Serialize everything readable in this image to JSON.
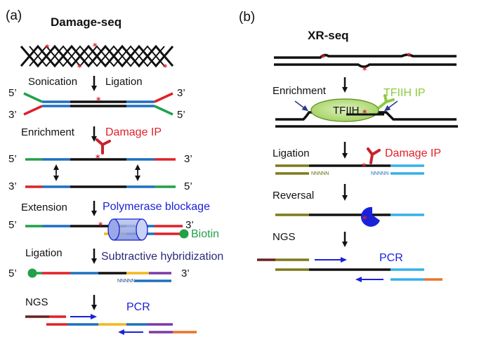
{
  "panel_a": {
    "label": "(a)",
    "title": "Damage-seq",
    "steps": {
      "sonication": "Sonication",
      "ligation1": "Ligation",
      "enrichment": "Enrichment",
      "damage_ip": "Damage IP",
      "extension": "Extension",
      "polymerase_blockage": "Polymerase blockage",
      "biotin": "Biotin",
      "ligation2": "Ligation",
      "subtractive": "Subtractive hybridization",
      "ngs": "NGS",
      "pcr": "PCR"
    },
    "ends": {
      "five": "5’",
      "three": "3’"
    },
    "nnnnn": "NNNNN"
  },
  "panel_b": {
    "label": "(b)",
    "title": "XR-seq",
    "steps": {
      "enrichment": "Enrichment",
      "tfiih_ip": "TFIIH IP",
      "tfiih": "TFIIH",
      "ligation": "Ligation",
      "damage_ip": "Damage IP",
      "reversal": "Reversal",
      "ngs": "NGS",
      "pcr": "PCR"
    },
    "nnnnn": "NNNNN"
  },
  "colors": {
    "black": "#111111",
    "blue_segment": "#1f6fc0",
    "red_end": "#e0202a",
    "green_end": "#22a04a",
    "olive": "#7e7a1a",
    "light_blue": "#35b0e8",
    "purple": "#7a3aa8",
    "orange": "#e9742a",
    "yellow": "#f3b71f",
    "maroon": "#6a2020",
    "label_red": "#e0202a",
    "label_blue": "#1a22d8",
    "label_green": "#22a04a",
    "label_navy": "#2a2a7a",
    "tfiih_green": "#8ccb3e"
  }
}
